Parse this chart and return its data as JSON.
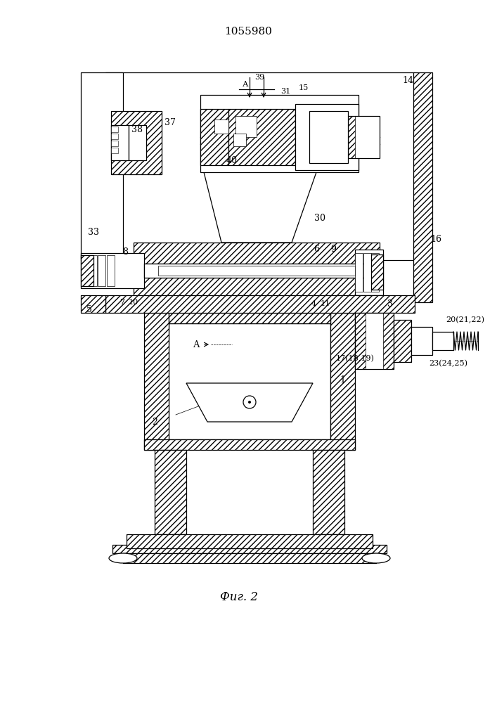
{
  "title": "1055980",
  "caption": "Фиг. 2",
  "bg_color": "#ffffff",
  "line_color": "#000000",
  "title_fontsize": 11,
  "caption_fontsize": 12,
  "label_fontsize": 9
}
